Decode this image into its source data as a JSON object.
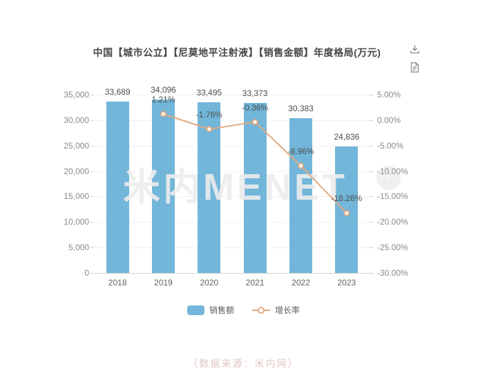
{
  "header": {
    "title": "中国【城市公立】【尼莫地平注射液】【销售金额】年度格局(万元)"
  },
  "toolbar": {
    "icons": [
      "download-icon",
      "report-icon"
    ]
  },
  "watermark": "米内MENET",
  "carousel": {
    "next_arrow": "›"
  },
  "footer": {
    "source_note": "（数据来源：米内网）"
  },
  "colors": {
    "bar": "#72b6d9",
    "line": "#e2aa80",
    "title_text": "#464646",
    "axis_text": "#85898d",
    "data_label_text": "#4c4c4c",
    "source_text": "#e0c6c3"
  },
  "chart_data": {
    "type": "bar",
    "title": "中国【城市公立】【尼莫地平注射液】【销售金额】年度格局(万元)",
    "categories": [
      "2018",
      "2019",
      "2020",
      "2021",
      "2022",
      "2023"
    ],
    "series": [
      {
        "name": "销售额",
        "type": "bar",
        "axis": "left",
        "color": "#72b6d9",
        "values": [
          33689,
          34096,
          33495,
          33373,
          30383,
          24836
        ],
        "labels": [
          "33,689",
          "34,096",
          "33,495",
          "33,373",
          "30,383",
          "24,836"
        ]
      },
      {
        "name": "增长率",
        "type": "line",
        "axis": "right",
        "color": "#e2aa80",
        "values": [
          null,
          1.21,
          -1.76,
          -0.36,
          -8.96,
          -18.26
        ],
        "labels": [
          null,
          "1.21%",
          "-1.76%",
          "-0.36%",
          "-8.96%",
          "-18.26%"
        ]
      }
    ],
    "y_left": {
      "min": 0,
      "max": 35000,
      "step": 5000,
      "labels_top_to_bottom": [
        "35,000",
        "30,000",
        "25,000",
        "20,000",
        "15,000",
        "10,000",
        "5,000",
        "0"
      ]
    },
    "y_right": {
      "min": -30,
      "max": 5,
      "step": 5,
      "labels_top_to_bottom": [
        "5.00%",
        "0.00%",
        "-5.00%",
        "-10.00%",
        "-15.00%",
        "-20.00%",
        "-25.00%",
        "-30.00%"
      ]
    },
    "legend_position": "bottom",
    "grid": true
  }
}
